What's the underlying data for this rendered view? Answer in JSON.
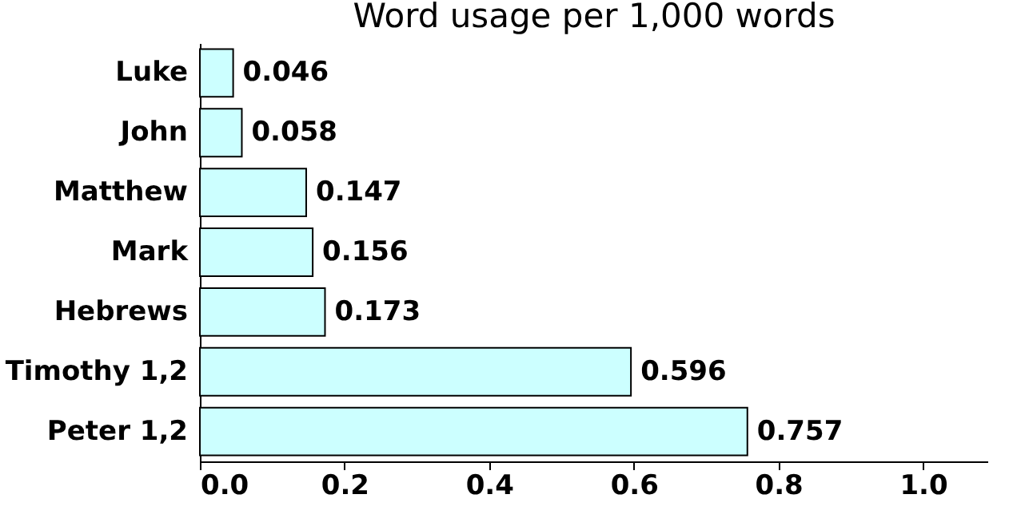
{
  "chart_data": {
    "type": "bar",
    "orientation": "horizontal",
    "title": "Word usage per 1,000 words",
    "categories": [
      "Luke",
      "John",
      "Matthew",
      "Mark",
      "Hebrews",
      "Timothy 1,2",
      "Peter 1,2"
    ],
    "values": [
      0.046,
      0.058,
      0.147,
      0.156,
      0.173,
      0.596,
      0.757
    ],
    "color": "#ccffff",
    "xlim": [
      0,
      1.09
    ],
    "xticks": [
      {
        "value": 0,
        "label": "0.0"
      },
      0.2,
      0.4,
      0.6,
      0.8,
      {
        "value": 1,
        "label": "1.0"
      }
    ],
    "data_labels": true,
    "grid": false
  }
}
